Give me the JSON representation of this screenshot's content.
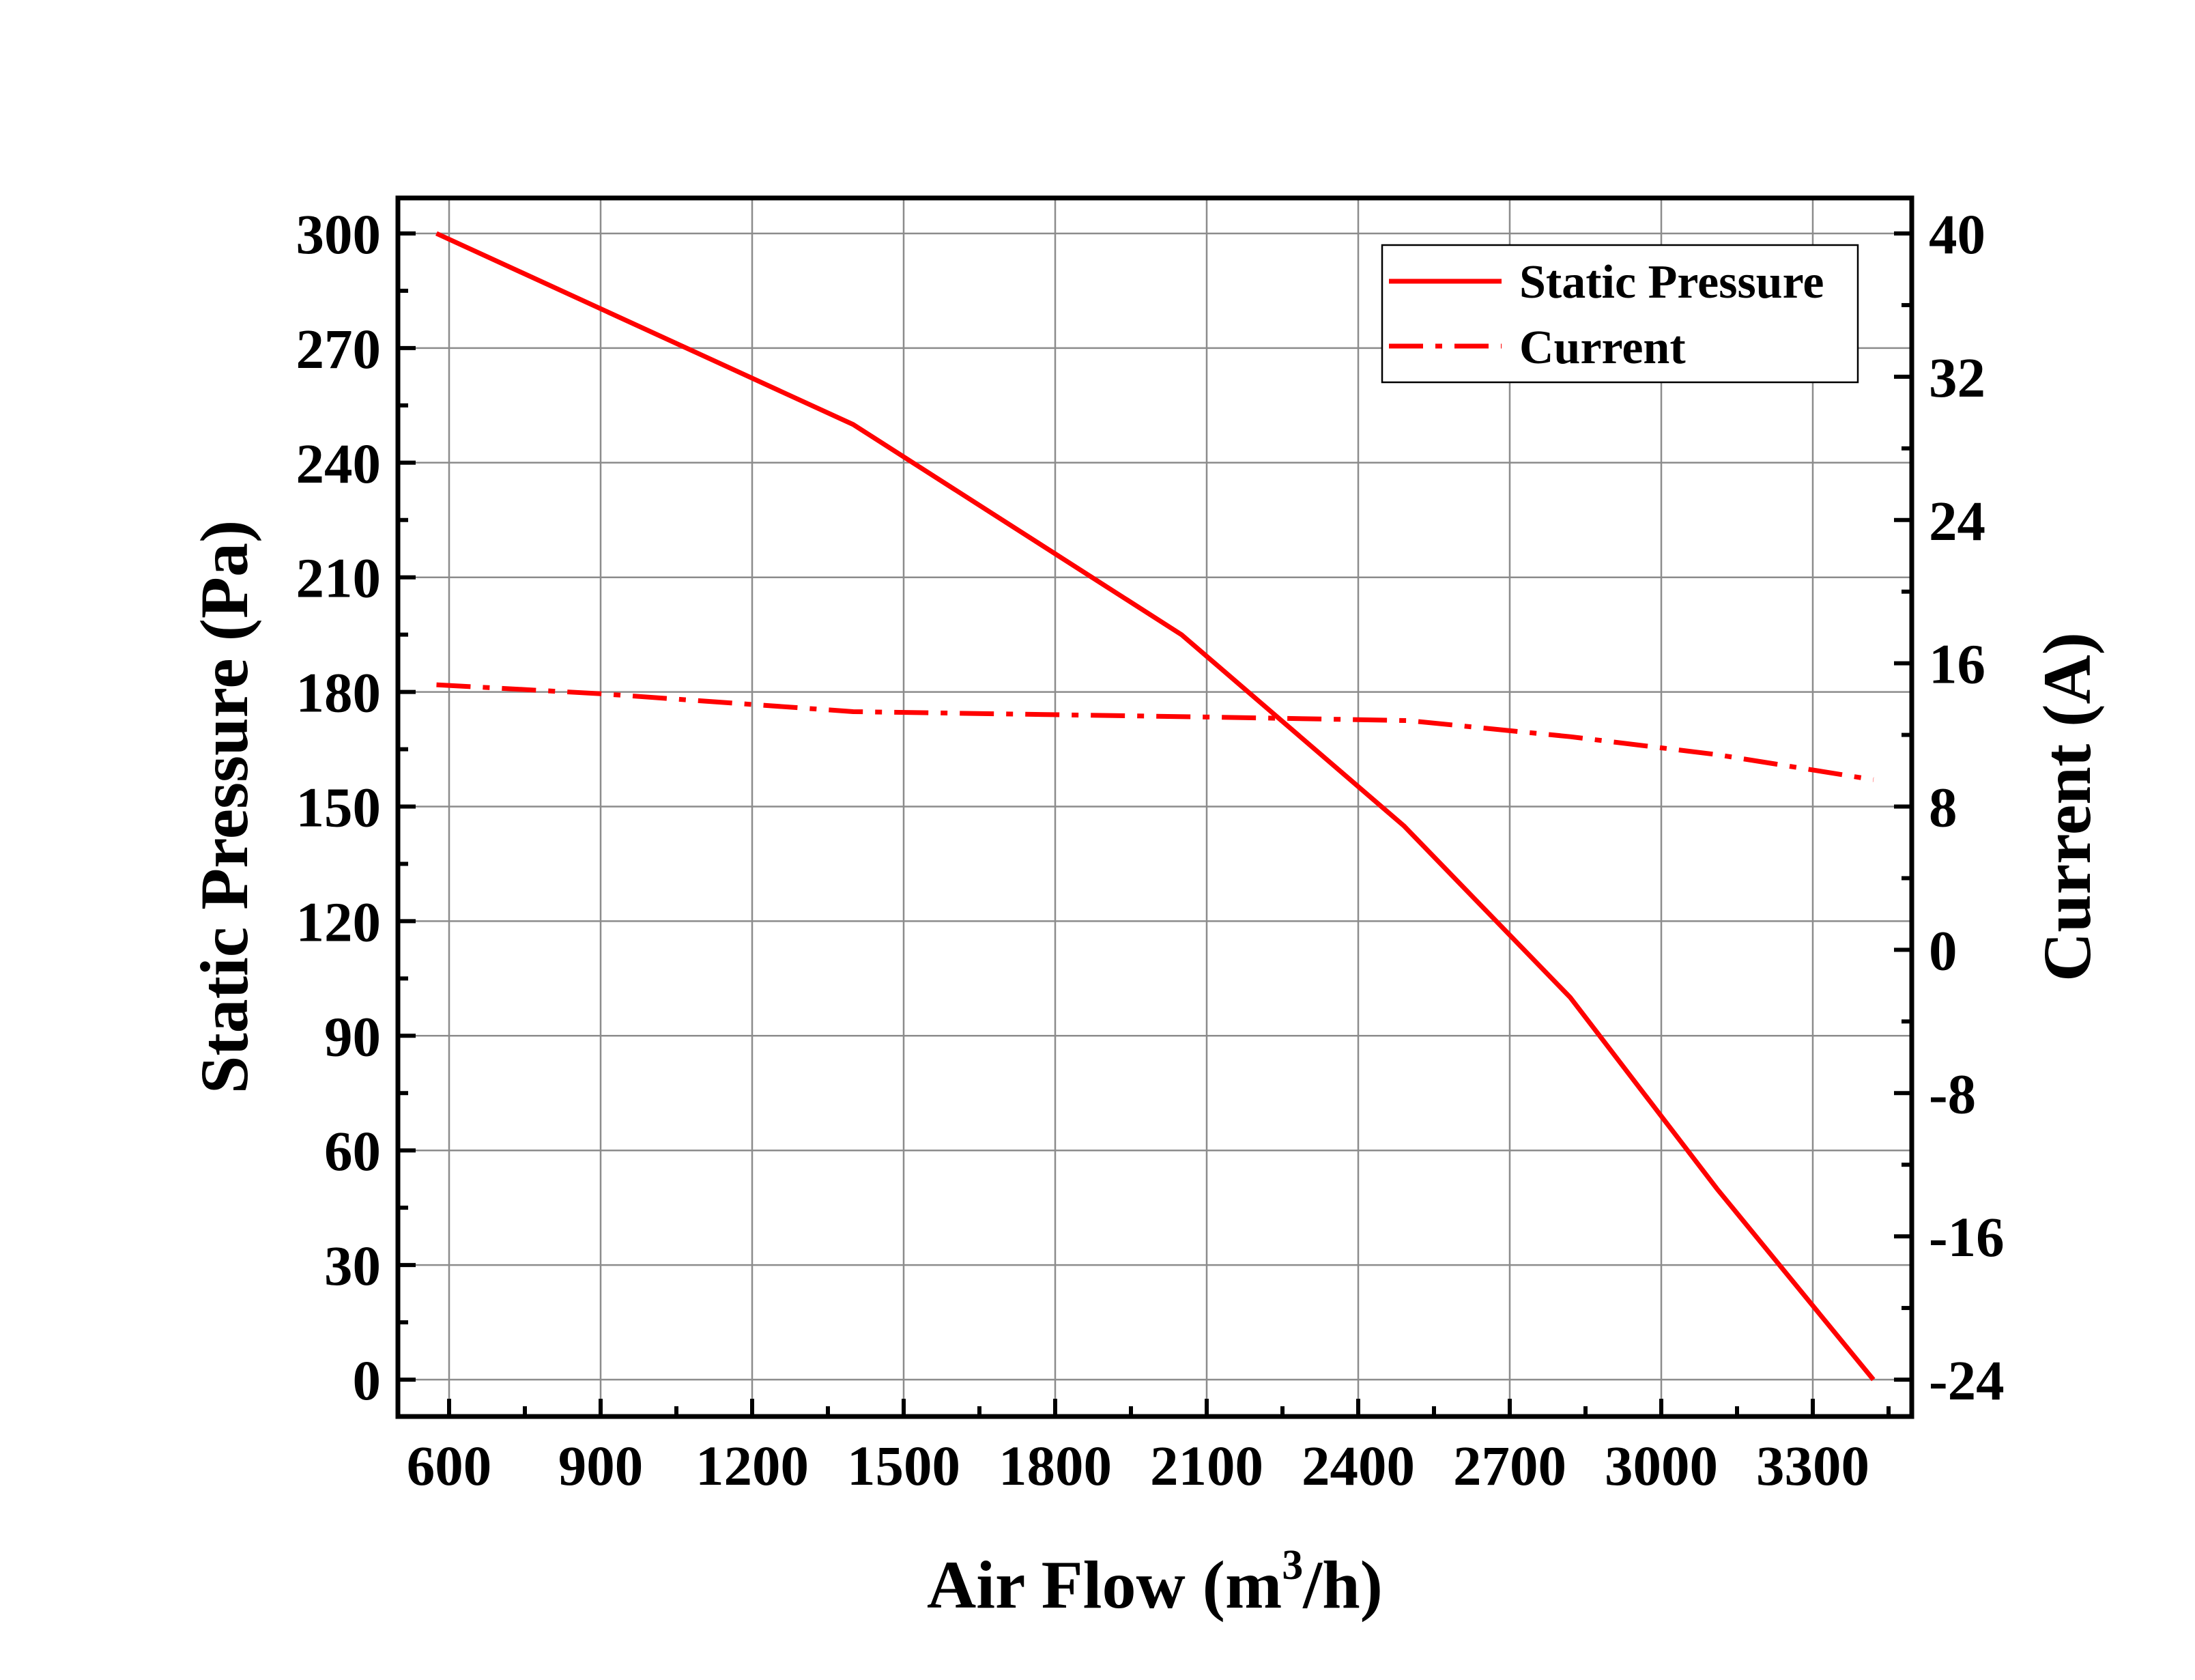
{
  "chart_data": {
    "type": "line",
    "title": "",
    "xlabel": "Air Flow (m",
    "xlabel_sup": "3",
    "xlabel_tail": "/h)",
    "ylabel_left": "Static Pressure (Pa)",
    "ylabel_right": "Current (A)",
    "xlim": [
      520,
      3520
    ],
    "ylim_left": [
      -20,
      310
    ],
    "ylim_right": [
      -24,
      40
    ],
    "xticks": [
      600,
      900,
      1200,
      1500,
      1800,
      2100,
      2400,
      2700,
      3000,
      3300
    ],
    "yticks_left": [
      0,
      30,
      60,
      90,
      120,
      150,
      180,
      210,
      240,
      270,
      300
    ],
    "yticks_right": [
      -24,
      -16,
      -8,
      0,
      8,
      16,
      24,
      32,
      40
    ],
    "grid": true,
    "legend_position": "top-right",
    "color": "#ff0000",
    "series": [
      {
        "name": "Static Pressure",
        "axis": "left",
        "style": "solid",
        "x": [
          575,
          1400,
          2050,
          2490,
          2820,
          3110,
          3420
        ],
        "y": [
          300,
          250,
          195,
          145,
          100,
          50,
          0
        ]
      },
      {
        "name": "Current",
        "axis": "right",
        "style": "dash-dot",
        "x": [
          575,
          900,
          1400,
          2100,
          2500,
          2820,
          3110,
          3420
        ],
        "y": [
          14.8,
          14.3,
          13.3,
          13.0,
          12.8,
          11.9,
          10.9,
          9.5
        ]
      }
    ]
  }
}
